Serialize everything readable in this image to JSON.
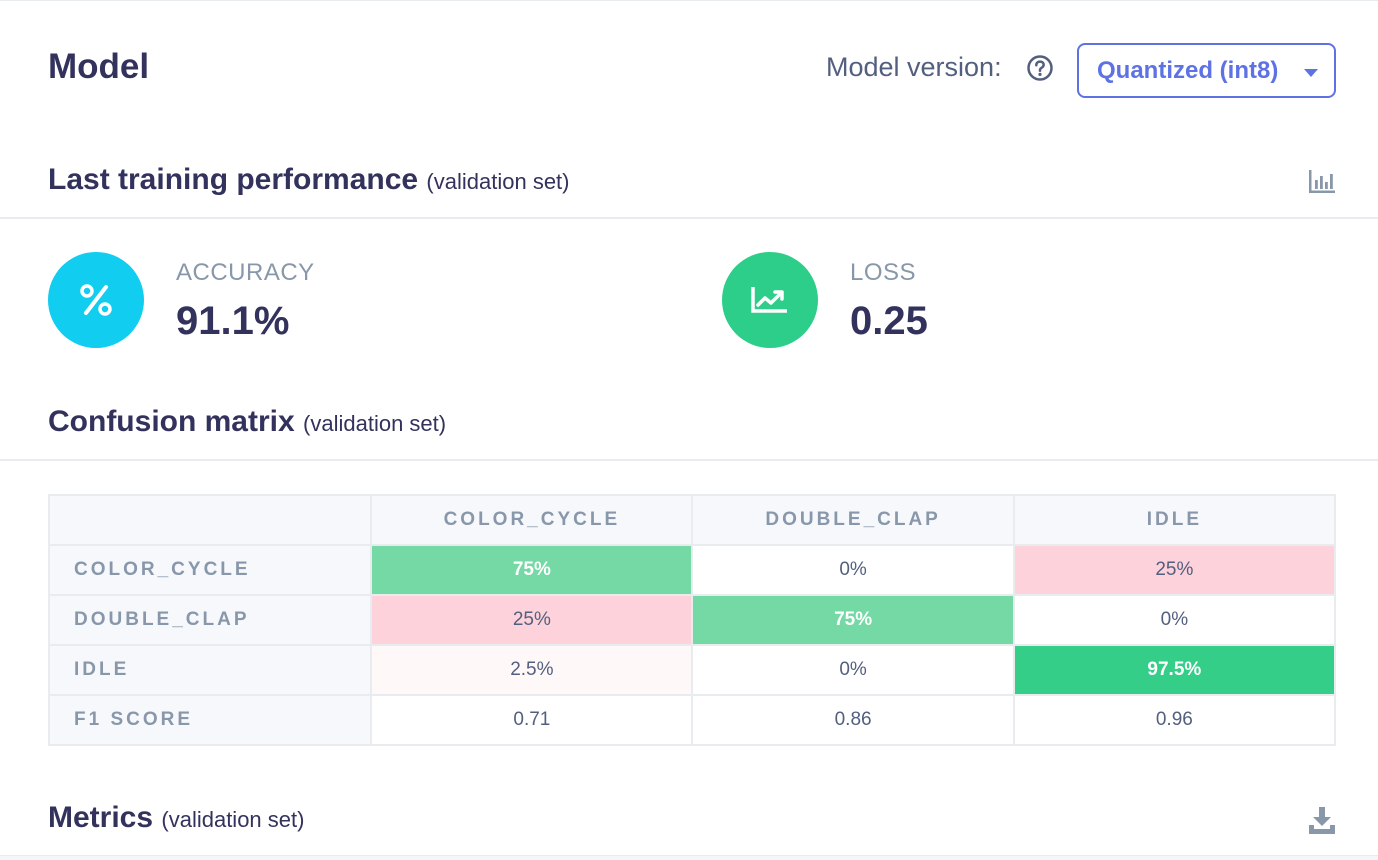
{
  "header": {
    "title": "Model",
    "version_label": "Model version:",
    "version_selected": "Quantized (int8)"
  },
  "performance": {
    "title": "Last training performance",
    "subtitle": "(validation set)",
    "accuracy": {
      "label": "ACCURACY",
      "value": "91.1%",
      "icon": "percent-icon",
      "color": "#11cdef"
    },
    "loss": {
      "label": "LOSS",
      "value": "0.25",
      "icon": "trend-chart-icon",
      "color": "#2dce89"
    }
  },
  "confusion_matrix": {
    "title": "Confusion matrix",
    "subtitle": "(validation set)",
    "columns": [
      "COLOR_CYCLE",
      "DOUBLE_CLAP",
      "IDLE"
    ],
    "rows": [
      {
        "label": "COLOR_CYCLE",
        "cells": [
          {
            "value": "75%",
            "bg": "#74d9a5",
            "strong": true
          },
          {
            "value": "0%",
            "bg": "#ffffff",
            "strong": false
          },
          {
            "value": "25%",
            "bg": "#fdd2db",
            "strong": false
          }
        ]
      },
      {
        "label": "DOUBLE_CLAP",
        "cells": [
          {
            "value": "25%",
            "bg": "#fdd2db",
            "strong": false
          },
          {
            "value": "75%",
            "bg": "#74d9a5",
            "strong": true
          },
          {
            "value": "0%",
            "bg": "#ffffff",
            "strong": false
          }
        ]
      },
      {
        "label": "IDLE",
        "cells": [
          {
            "value": "2.5%",
            "bg": "#fff8f8",
            "strong": false
          },
          {
            "value": "0%",
            "bg": "#ffffff",
            "strong": false
          },
          {
            "value": "97.5%",
            "bg": "#35ce89",
            "strong": true
          }
        ]
      },
      {
        "label": "F1 SCORE",
        "cells": [
          {
            "value": "0.71",
            "bg": "#ffffff",
            "strong": false
          },
          {
            "value": "0.86",
            "bg": "#ffffff",
            "strong": false
          },
          {
            "value": "0.96",
            "bg": "#ffffff",
            "strong": false
          }
        ]
      }
    ]
  },
  "metrics": {
    "title": "Metrics",
    "subtitle": "(validation set)"
  },
  "colors": {
    "accent": "#5e72e4",
    "text_primary": "#32325d",
    "text_muted": "#8898aa"
  }
}
